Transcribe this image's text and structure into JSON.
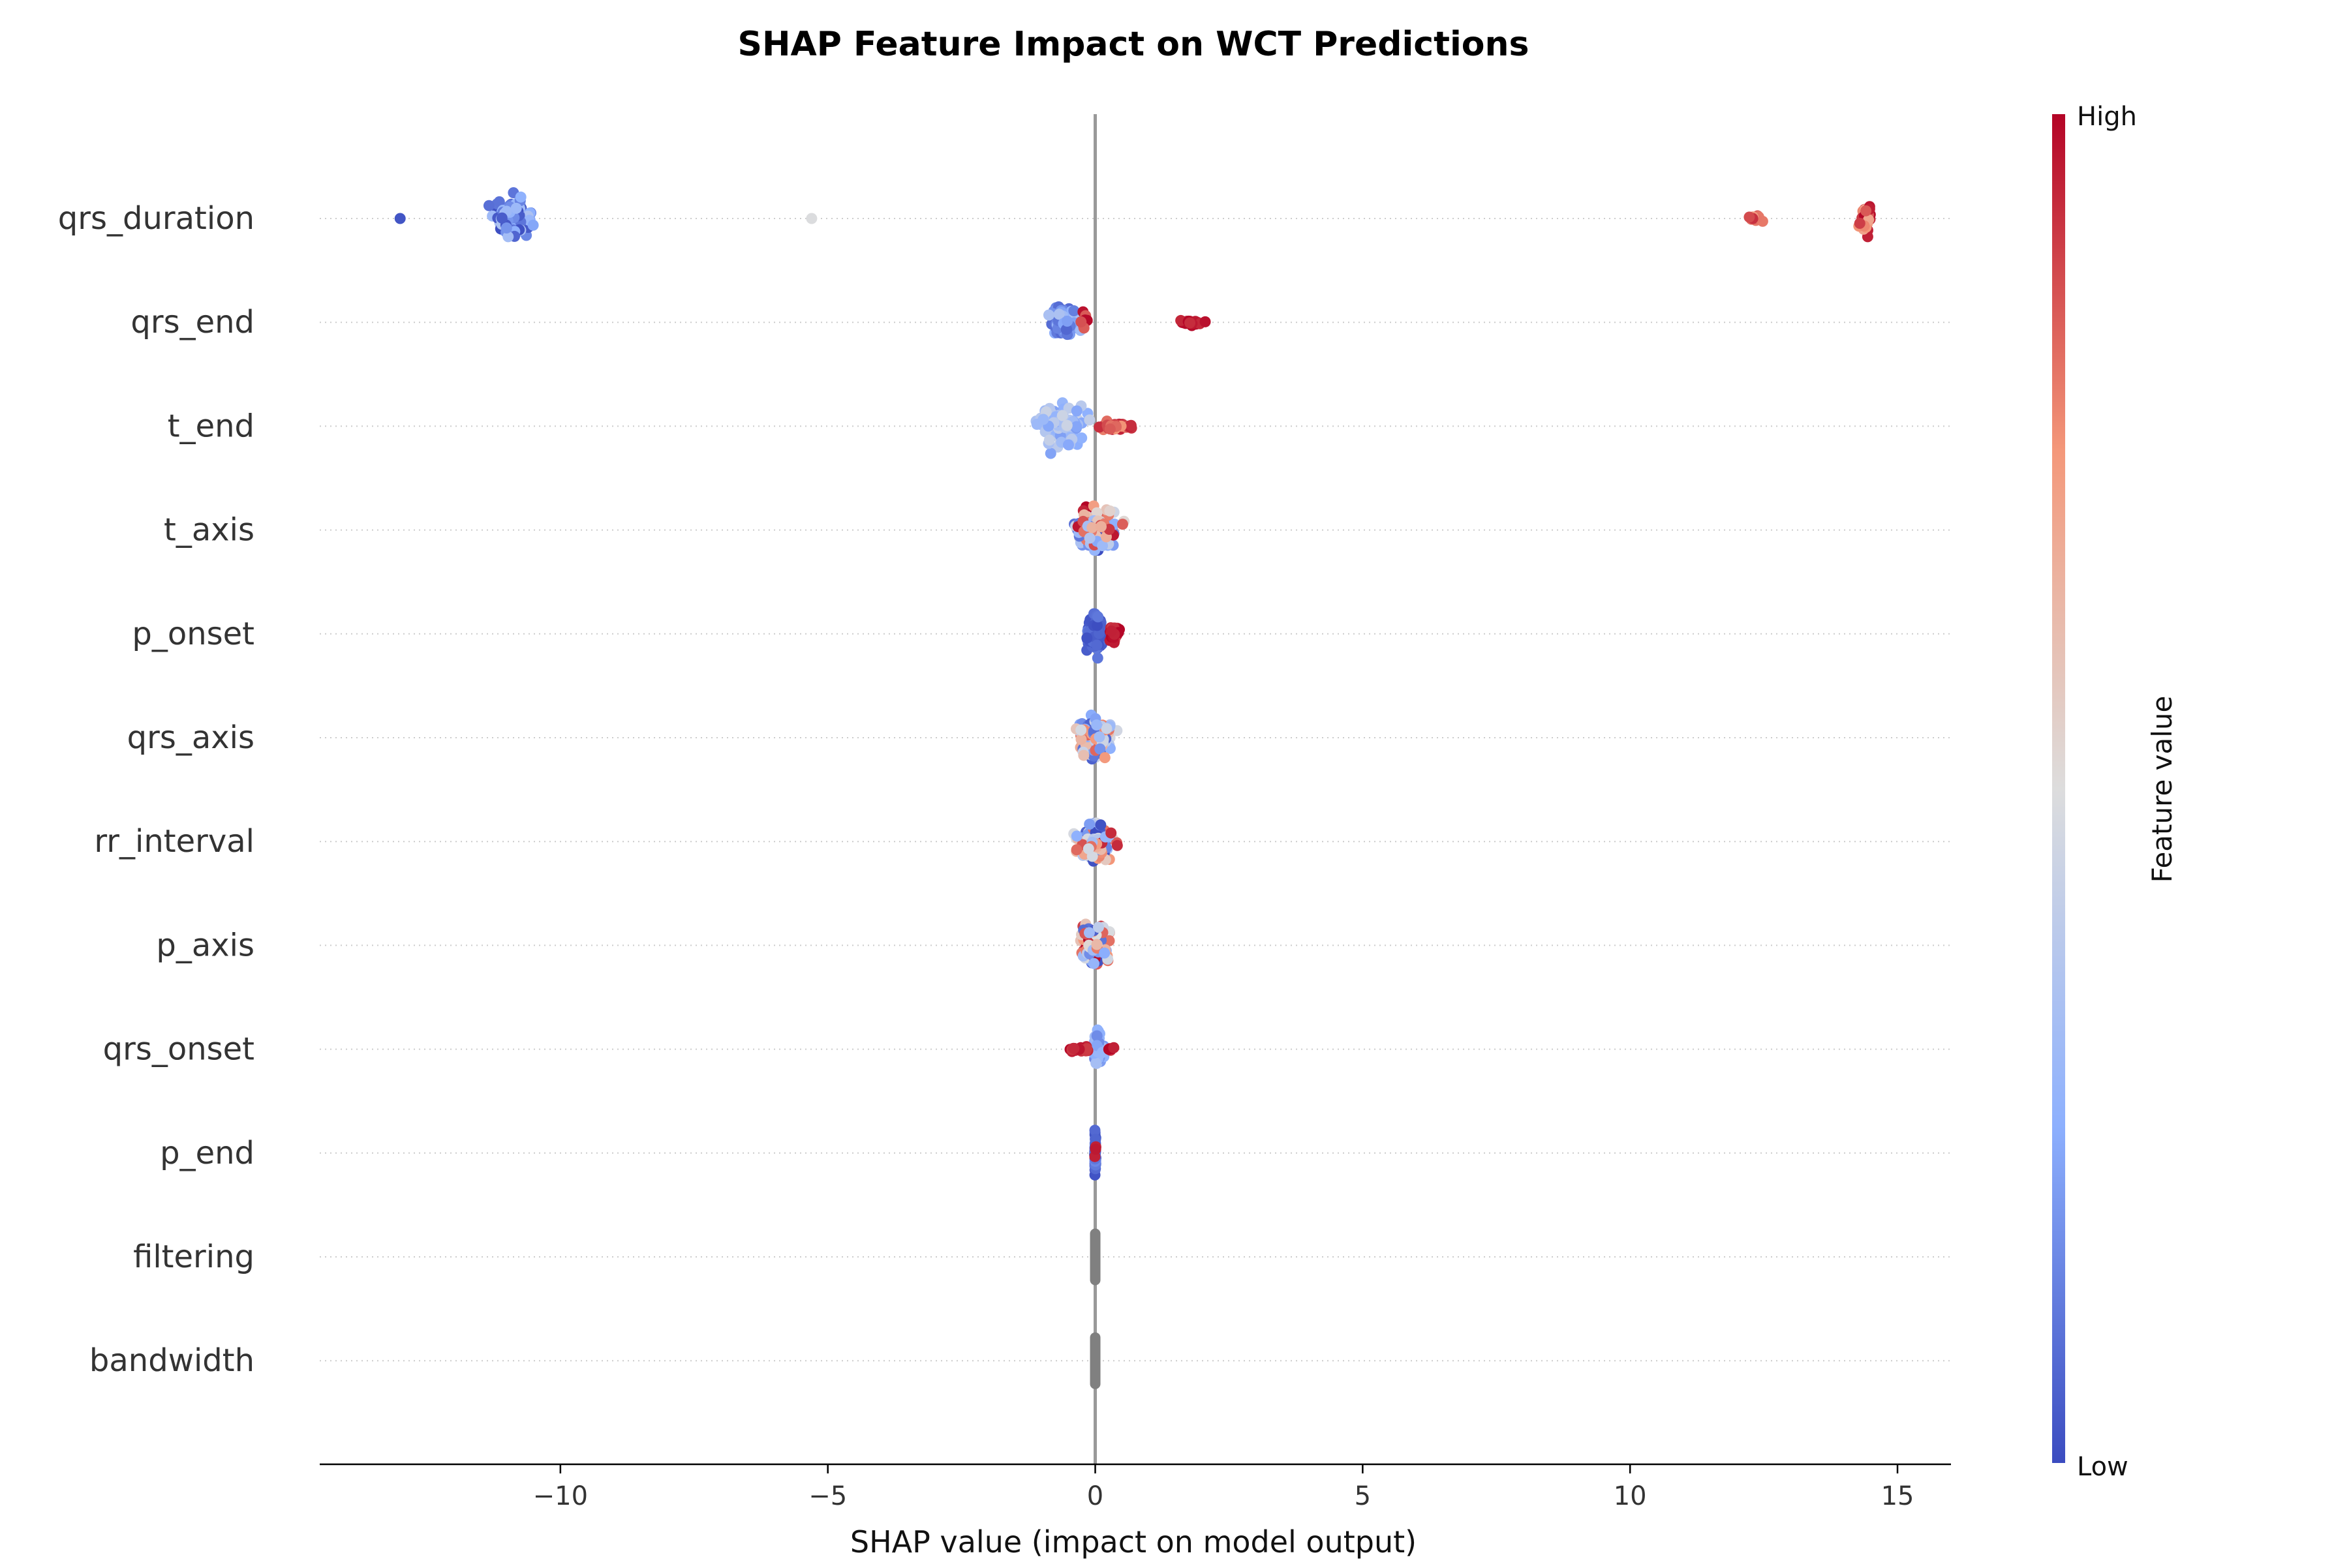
{
  "chart_data": {
    "type": "scatter",
    "subtype": "shap-beeswarm",
    "title": "SHAP Feature Impact on WCT Predictions",
    "xlabel": "SHAP value (impact on model output)",
    "ylabel": "",
    "xlim": [
      -14.5,
      16
    ],
    "x_ticks": [
      -10,
      -5,
      0,
      5,
      10,
      15
    ],
    "x_tick_labels": [
      "−10",
      "−5",
      "0",
      "5",
      "10",
      "15"
    ],
    "grid": false,
    "zero_line": true,
    "colorbar": {
      "label": "Feature value",
      "high_label": "High",
      "low_label": "Low",
      "colormap": "coolwarm",
      "low_color": "#3b4cc0",
      "mid_color": "#dddddd",
      "high_color": "#b40426"
    },
    "features": [
      {
        "name": "qrs_duration",
        "clusters": [
          {
            "center": -10.9,
            "spread": 0.55,
            "count": 130,
            "cmin": 0.0,
            "cmax": 0.35,
            "height": 0.4
          },
          {
            "center": -13.0,
            "spread": 0.02,
            "count": 1,
            "cmin": 0.0,
            "cmax": 0.05,
            "height": 0.0
          },
          {
            "center": -5.3,
            "spread": 0.02,
            "count": 1,
            "cmin": 0.48,
            "cmax": 0.5,
            "height": 0.0
          },
          {
            "center": 12.3,
            "spread": 0.35,
            "count": 14,
            "cmin": 0.72,
            "cmax": 1.0,
            "height": 0.06
          },
          {
            "center": 14.4,
            "spread": 0.18,
            "count": 30,
            "cmin": 0.7,
            "cmax": 1.0,
            "height": 0.32
          }
        ]
      },
      {
        "name": "qrs_end",
        "clusters": [
          {
            "center": -0.6,
            "spread": 0.4,
            "count": 90,
            "cmin": 0.05,
            "cmax": 0.35,
            "height": 0.36
          },
          {
            "center": -0.2,
            "spread": 0.1,
            "count": 8,
            "cmin": 0.85,
            "cmax": 1.0,
            "height": 0.3
          },
          {
            "center": 1.8,
            "spread": 0.45,
            "count": 22,
            "cmin": 0.9,
            "cmax": 1.0,
            "height": 0.06
          }
        ]
      },
      {
        "name": "t_end",
        "clusters": [
          {
            "center": -0.6,
            "spread": 0.75,
            "count": 110,
            "cmin": 0.2,
            "cmax": 0.45,
            "height": 0.42
          },
          {
            "center": 0.35,
            "spread": 0.7,
            "count": 45,
            "cmin": 0.75,
            "cmax": 1.0,
            "height": 0.08
          }
        ]
      },
      {
        "name": "t_axis",
        "clusters": [
          {
            "center": 0.0,
            "spread": 0.65,
            "count": 160,
            "cmin": 0.0,
            "cmax": 1.0,
            "height": 0.4
          }
        ]
      },
      {
        "name": "p_onset",
        "clusters": [
          {
            "center": 0.0,
            "spread": 0.25,
            "count": 130,
            "cmin": 0.0,
            "cmax": 0.12,
            "height": 0.4
          },
          {
            "center": 0.35,
            "spread": 0.15,
            "count": 35,
            "cmin": 0.9,
            "cmax": 1.0,
            "height": 0.18
          }
        ]
      },
      {
        "name": "qrs_axis",
        "clusters": [
          {
            "center": 0.0,
            "spread": 0.6,
            "count": 140,
            "cmin": 0.05,
            "cmax": 0.85,
            "height": 0.38
          }
        ]
      },
      {
        "name": "rr_interval",
        "clusters": [
          {
            "center": 0.0,
            "spread": 0.55,
            "count": 140,
            "cmin": 0.0,
            "cmax": 1.0,
            "height": 0.38
          }
        ]
      },
      {
        "name": "p_axis",
        "clusters": [
          {
            "center": 0.0,
            "spread": 0.45,
            "count": 140,
            "cmin": 0.0,
            "cmax": 1.0,
            "height": 0.38
          }
        ]
      },
      {
        "name": "qrs_onset",
        "clusters": [
          {
            "center": 0.05,
            "spread": 0.15,
            "count": 70,
            "cmin": 0.15,
            "cmax": 0.35,
            "height": 0.38
          },
          {
            "center": -0.3,
            "spread": 0.35,
            "count": 25,
            "cmin": 0.9,
            "cmax": 1.0,
            "height": 0.05
          },
          {
            "center": 0.3,
            "spread": 0.15,
            "count": 6,
            "cmin": 0.9,
            "cmax": 1.0,
            "height": 0.05
          }
        ]
      },
      {
        "name": "p_end",
        "clusters": [
          {
            "center": 0.0,
            "spread": 0.02,
            "count": 60,
            "cmin": 0.0,
            "cmax": 0.15,
            "height": 0.4
          },
          {
            "center": 0.0,
            "spread": 0.02,
            "count": 4,
            "cmin": 0.95,
            "cmax": 1.0,
            "height": 0.3
          }
        ]
      },
      {
        "name": "filtering",
        "clusters": [
          {
            "center": 0.0,
            "spread": 0.0,
            "count": 60,
            "gray": true,
            "height": 0.4
          }
        ]
      },
      {
        "name": "bandwidth",
        "clusters": [
          {
            "center": 0.0,
            "spread": 0.0,
            "count": 60,
            "gray": true,
            "height": 0.4
          }
        ]
      }
    ]
  }
}
